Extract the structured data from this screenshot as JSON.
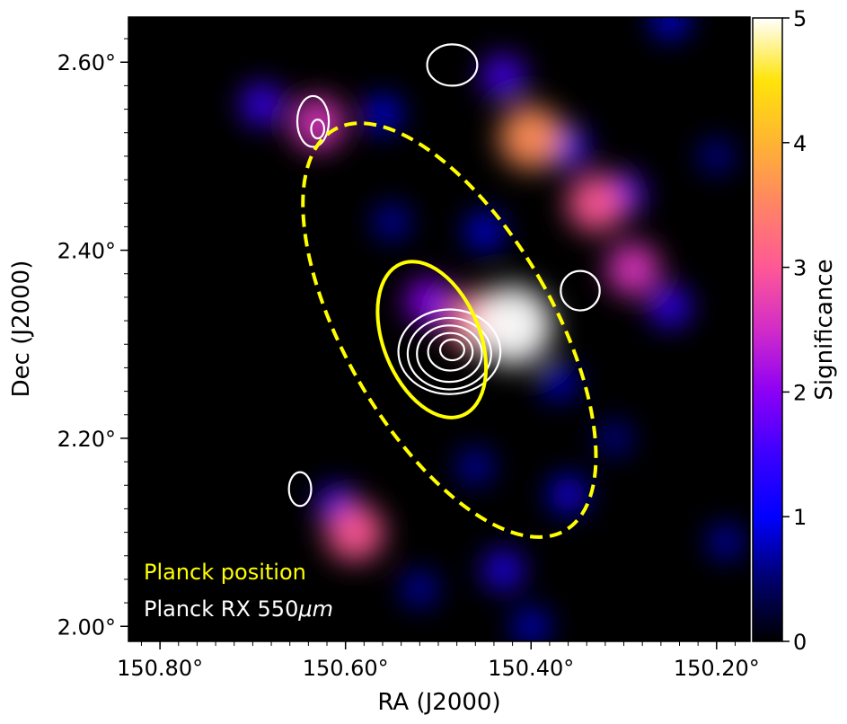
{
  "chart_data": {
    "type": "heatmap",
    "title": "",
    "xlabel": "RA (J2000)",
    "ylabel": "Dec (J2000)",
    "x_range": [
      150.834,
      150.164
    ],
    "y_range": [
      1.984,
      2.648
    ],
    "x_inverted": true,
    "x_ticks": [
      {
        "value": 150.8,
        "label": "150.80°"
      },
      {
        "value": 150.6,
        "label": "150.60°"
      },
      {
        "value": 150.4,
        "label": "150.40°"
      },
      {
        "value": 150.2,
        "label": "150.20°"
      }
    ],
    "y_ticks": [
      {
        "value": 2.0,
        "label": "2.00°"
      },
      {
        "value": 2.2,
        "label": "2.20°"
      },
      {
        "value": 2.4,
        "label": "2.40°"
      },
      {
        "value": 2.6,
        "label": "2.60°"
      }
    ],
    "colormap": "gnuplot2",
    "colorbar": {
      "label": "Significance",
      "range": [
        0,
        5
      ],
      "ticks": [
        {
          "value": 0,
          "label": "0"
        },
        {
          "value": 1,
          "label": "1"
        },
        {
          "value": 2,
          "label": "2"
        },
        {
          "value": 3,
          "label": "3"
        },
        {
          "value": 4,
          "label": "4"
        },
        {
          "value": 5,
          "label": "5"
        }
      ]
    },
    "significance_peaks": [
      {
        "ra": 150.42,
        "dec": 2.32,
        "peak": 5.0
      },
      {
        "ra": 150.46,
        "dec": 2.325,
        "peak": 3.2
      },
      {
        "ra": 150.51,
        "dec": 2.345,
        "peak": 2.0
      },
      {
        "ra": 150.4,
        "dec": 2.52,
        "peak": 3.6
      },
      {
        "ra": 150.43,
        "dec": 2.585,
        "peak": 1.6
      },
      {
        "ra": 150.36,
        "dec": 2.51,
        "peak": 1.4
      },
      {
        "ra": 150.33,
        "dec": 2.45,
        "peak": 3.0
      },
      {
        "ra": 150.3,
        "dec": 2.46,
        "peak": 1.5
      },
      {
        "ra": 150.29,
        "dec": 2.38,
        "peak": 2.6
      },
      {
        "ra": 150.25,
        "dec": 2.34,
        "peak": 1.4
      },
      {
        "ra": 150.63,
        "dec": 2.535,
        "peak": 2.6
      },
      {
        "ra": 150.69,
        "dec": 2.555,
        "peak": 1.5
      },
      {
        "ra": 150.56,
        "dec": 2.545,
        "peak": 1.0
      },
      {
        "ra": 150.25,
        "dec": 2.645,
        "peak": 1.0
      },
      {
        "ra": 150.59,
        "dec": 2.1,
        "peak": 3.0
      },
      {
        "ra": 150.61,
        "dec": 2.13,
        "peak": 1.2
      },
      {
        "ra": 150.43,
        "dec": 2.06,
        "peak": 1.3
      },
      {
        "ra": 150.36,
        "dec": 2.14,
        "peak": 1.1
      },
      {
        "ra": 150.52,
        "dec": 2.04,
        "peak": 0.8
      },
      {
        "ra": 150.45,
        "dec": 2.42,
        "peak": 1.0
      },
      {
        "ra": 150.55,
        "dec": 2.43,
        "peak": 0.8
      },
      {
        "ra": 150.37,
        "dec": 2.26,
        "peak": 0.9
      },
      {
        "ra": 150.46,
        "dec": 2.17,
        "peak": 0.8
      },
      {
        "ra": 150.31,
        "dec": 2.2,
        "peak": 0.7
      },
      {
        "ra": 150.19,
        "dec": 2.09,
        "peak": 0.8
      },
      {
        "ra": 150.4,
        "dec": 2.0,
        "peak": 0.9
      },
      {
        "ra": 150.2,
        "dec": 2.5,
        "peak": 0.7
      }
    ],
    "contours": [
      {
        "ra": 150.485,
        "dec": 2.597,
        "a_ra": 0.027,
        "a_dec": 0.022
      },
      {
        "ra": 150.635,
        "dec": 2.537,
        "a_ra": 0.017,
        "a_dec": 0.027
      },
      {
        "ra": 150.63,
        "dec": 2.529,
        "a_ra": 0.007,
        "a_dec": 0.01
      },
      {
        "ra": 150.347,
        "dec": 2.357,
        "a_ra": 0.021,
        "a_dec": 0.021
      },
      {
        "ra": 150.649,
        "dec": 2.146,
        "a_ra": 0.012,
        "a_dec": 0.018
      },
      {
        "ra": 150.488,
        "dec": 2.292,
        "a_ra": 0.055,
        "a_dec": 0.045
      },
      {
        "ra": 150.488,
        "dec": 2.29,
        "a_ra": 0.045,
        "a_dec": 0.038
      },
      {
        "ra": 150.488,
        "dec": 2.29,
        "a_ra": 0.035,
        "a_dec": 0.03
      },
      {
        "ra": 150.487,
        "dec": 2.292,
        "a_ra": 0.024,
        "a_dec": 0.02
      },
      {
        "ra": 150.485,
        "dec": 2.294,
        "a_ra": 0.013,
        "a_dec": 0.011
      }
    ],
    "ellipses": [
      {
        "style": "solid",
        "ra": 150.507,
        "dec": 2.305,
        "a_ra": 0.052,
        "a_dec": 0.087,
        "angle": -22
      },
      {
        "style": "dashed",
        "ra": 150.488,
        "dec": 2.315,
        "a_ra": 0.112,
        "a_dec": 0.246,
        "angle": -30
      }
    ],
    "annotations": [
      {
        "text": "Planck position",
        "color": "#ffff00"
      },
      {
        "text": "Planck RX 550",
        "suffix": "μm",
        "color": "#ffffff"
      }
    ]
  }
}
